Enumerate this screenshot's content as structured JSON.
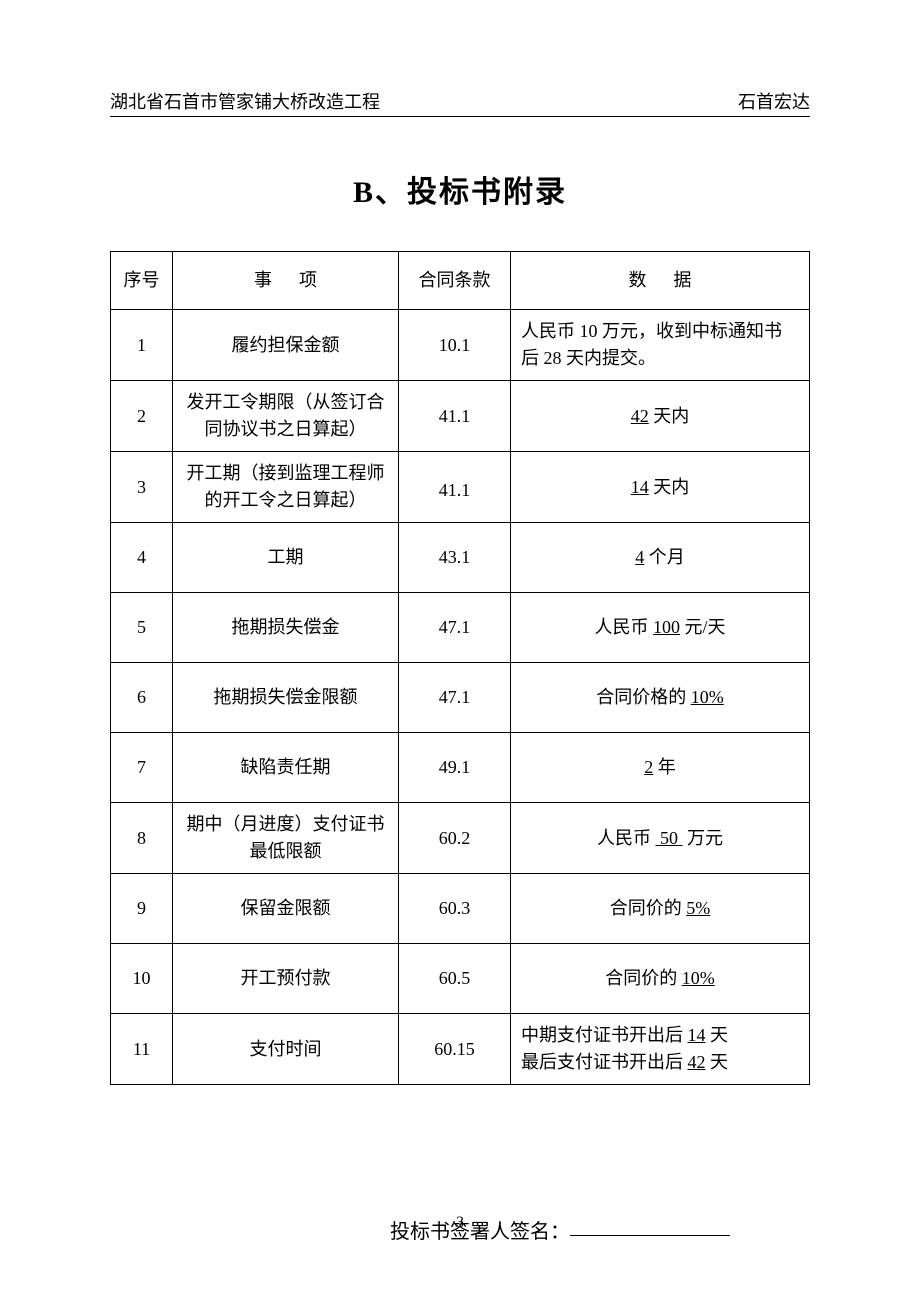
{
  "header": {
    "left": "湖北省石首市管家铺大桥改造工程",
    "right": "石首宏达"
  },
  "title": {
    "prefix": "B",
    "text": "、投标书附录"
  },
  "table": {
    "columns": {
      "num": "序号",
      "item_a": "事",
      "item_b": "项",
      "clause": "合同条款",
      "data_a": "数",
      "data_b": "据"
    },
    "rows": [
      {
        "num": "1",
        "item": "履约担保金额",
        "clause": "10.1",
        "data_html": "人民币 10 万元，收到中标通知书后 28 天内提交。",
        "align": "left"
      },
      {
        "num": "2",
        "item": "发开工令期限（从签订合同协议书之日算起）",
        "clause": "41.1",
        "data_html": "<span class=\"u\">42</span> 天内",
        "align": "center"
      },
      {
        "num": "3",
        "item": "开工期（接到监理工程师的开工令之日算起）",
        "clause": "41.1",
        "data_html": "<span class=\"u\">14</span> 天内",
        "align": "center",
        "clause_vbottom": true
      },
      {
        "num": "4",
        "item": "工期",
        "clause": "43.1",
        "data_html": "<span class=\"u\">4</span> 个月",
        "align": "center"
      },
      {
        "num": "5",
        "item": "拖期损失偿金",
        "clause": "47.1",
        "data_html": "人民币 <span class=\"u\">100</span> 元/天",
        "align": "center"
      },
      {
        "num": "6",
        "item": "拖期损失偿金限额",
        "clause": "47.1",
        "data_html": "合同价格的 <span class=\"u\">10%</span>",
        "align": "center"
      },
      {
        "num": "7",
        "item": "缺陷责任期",
        "clause": "49.1",
        "data_html": "<span class=\"u\">2</span> 年",
        "align": "center"
      },
      {
        "num": "8",
        "item": "期中（月进度）支付证书最低限额",
        "clause": "60.2",
        "data_html": "人民币 <span class=\"u\">&nbsp;50&nbsp;</span> 万元",
        "align": "center"
      },
      {
        "num": "9",
        "item": "保留金限额",
        "clause": "60.3",
        "data_html": "合同价的 <span class=\"u\">5%</span>",
        "align": "center"
      },
      {
        "num": "10",
        "item": "开工预付款",
        "clause": "60.5",
        "data_html": "合同价的 <span class=\"u\">10%</span>",
        "align": "center"
      },
      {
        "num": "11",
        "item": "支付时间",
        "clause": "60.15",
        "data_html": "中期支付证书开出后 <span class=\"u\">14</span> 天<br>最后支付证书开出后 <span class=\"u\">42</span> 天",
        "align": "left"
      }
    ]
  },
  "signature": {
    "label": "投标书签署人签名："
  },
  "page_number": "3",
  "colors": {
    "text": "#000000",
    "bg": "#ffffff",
    "border": "#000000"
  }
}
